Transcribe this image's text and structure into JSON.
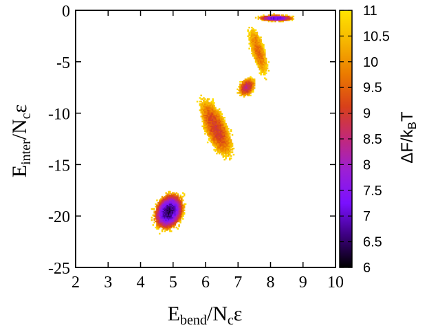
{
  "chart_data": {
    "type": "heatmap",
    "x": {
      "label": {
        "main": "E",
        "sub": "bend",
        "rest": "/N",
        "sub2": "c",
        "tail": "ε"
      },
      "range": [
        2,
        10
      ],
      "ticks": [
        2,
        3,
        4,
        5,
        6,
        7,
        8,
        9,
        10
      ]
    },
    "y": {
      "label": {
        "main": "E",
        "sub": "inter",
        "rest": "/N",
        "sub2": "c",
        "tail": "ε"
      },
      "range": [
        -25,
        0
      ],
      "ticks": [
        0,
        -5,
        -10,
        -15,
        -20,
        -25
      ]
    },
    "colorbar": {
      "label": {
        "main": "ΔF/k",
        "sub": "B",
        "tail": "T"
      },
      "range": [
        6,
        11
      ],
      "ticks": [
        11,
        10.5,
        10,
        9.5,
        9,
        8.5,
        8,
        7.5,
        7,
        6.5,
        6
      ],
      "colors": [
        "#000000",
        "#3d0080",
        "#7a10ff",
        "#9b1fd6",
        "#c2287a",
        "#d8401a",
        "#eb7a00",
        "#f6b400",
        "#ffe400"
      ]
    },
    "regions": [
      {
        "name": "main-basin",
        "x": 4.85,
        "y": -19.6,
        "sx": 0.55,
        "sy": 1.8,
        "rot": 35,
        "fmin": 6.4,
        "fmax": 10.9
      },
      {
        "name": "corridor",
        "x": 6.3,
        "y": -11.5,
        "sx": 0.35,
        "sy": 3.6,
        "rot": 33,
        "fmin": 9.0,
        "fmax": 11.0
      },
      {
        "name": "mid-basin",
        "x": 7.25,
        "y": -7.5,
        "sx": 0.3,
        "sy": 0.9,
        "rot": 30,
        "fmin": 8.6,
        "fmax": 10.9
      },
      {
        "name": "upper-corridor",
        "x": 7.6,
        "y": -4.0,
        "sx": 0.22,
        "sy": 2.6,
        "rot": 22,
        "fmin": 9.6,
        "fmax": 11.0
      },
      {
        "name": "top-basin",
        "x": 8.15,
        "y": -0.8,
        "sx": 0.6,
        "sy": 0.35,
        "rot": 0,
        "fmin": 7.0,
        "fmax": 10.9
      }
    ]
  }
}
